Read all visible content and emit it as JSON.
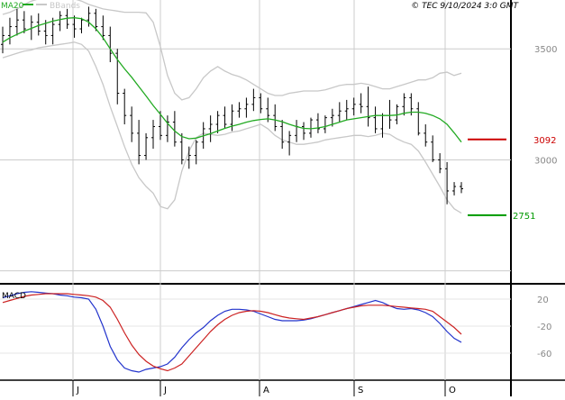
{
  "header": {
    "ma_label": "MA20",
    "bbands_label": "BBands",
    "copyright": "© TEC 9/10/2024 3:0 GMT"
  },
  "colors": {
    "ma": "#22aa22",
    "bbands": "#c8c8c8",
    "bar": "#000000",
    "resistance": "#cc0000",
    "support": "#009900",
    "macd": "#2233cc",
    "signal": "#cc2222",
    "grid": "#cccccc",
    "frame": "#000000"
  },
  "chart_data": [
    {
      "type": "ohlc",
      "panel": "price",
      "x_tick_labels": [
        "J",
        "J",
        "A",
        "S",
        "O"
      ],
      "y_tick_labels": [
        "3500",
        "3000"
      ],
      "ylim": [
        2450,
        3720
      ],
      "grid": true,
      "levels": [
        {
          "name": "resistance",
          "value": 3092,
          "label": "3092"
        },
        {
          "name": "support",
          "value": 2751,
          "label": "2751"
        }
      ],
      "series": [
        {
          "name": "MA20",
          "values": [
            3530,
            3550,
            3565,
            3580,
            3592,
            3605,
            3615,
            3625,
            3632,
            3638,
            3640,
            3636,
            3620,
            3590,
            3550,
            3500,
            3452,
            3410,
            3372,
            3330,
            3288,
            3245,
            3205,
            3165,
            3130,
            3105,
            3095,
            3098,
            3108,
            3118,
            3130,
            3142,
            3152,
            3160,
            3170,
            3177,
            3182,
            3185,
            3180,
            3172,
            3160,
            3150,
            3142,
            3140,
            3144,
            3150,
            3160,
            3170,
            3180,
            3185,
            3190,
            3195,
            3200,
            3200,
            3200,
            3202,
            3210,
            3215,
            3215,
            3210,
            3200,
            3185,
            3160,
            3122,
            3080
          ]
        },
        {
          "name": "BBands upper",
          "values": [
            3655,
            3665,
            3680,
            3700,
            3715,
            3725,
            3730,
            3735,
            3735,
            3730,
            3725,
            3715,
            3700,
            3690,
            3680,
            3675,
            3670,
            3665,
            3665,
            3665,
            3662,
            3620,
            3510,
            3380,
            3300,
            3270,
            3280,
            3320,
            3370,
            3400,
            3420,
            3400,
            3385,
            3375,
            3360,
            3340,
            3320,
            3300,
            3290,
            3290,
            3300,
            3305,
            3310,
            3310,
            3310,
            3315,
            3325,
            3335,
            3340,
            3340,
            3345,
            3340,
            3330,
            3320,
            3320,
            3330,
            3340,
            3350,
            3360,
            3360,
            3370,
            3390,
            3395,
            3380,
            3390
          ]
        },
        {
          "name": "BBands lower",
          "values": [
            3460,
            3470,
            3480,
            3490,
            3495,
            3505,
            3510,
            3515,
            3520,
            3525,
            3530,
            3520,
            3490,
            3420,
            3340,
            3240,
            3150,
            3060,
            2980,
            2920,
            2880,
            2850,
            2790,
            2780,
            2820,
            2950,
            3040,
            3100,
            3120,
            3115,
            3110,
            3115,
            3125,
            3130,
            3140,
            3150,
            3160,
            3140,
            3110,
            3090,
            3080,
            3070,
            3070,
            3075,
            3080,
            3090,
            3095,
            3100,
            3105,
            3110,
            3110,
            3105,
            3110,
            3120,
            3115,
            3095,
            3080,
            3070,
            3040,
            2990,
            2935,
            2880,
            2820,
            2780,
            2760
          ]
        }
      ],
      "ohlc": [
        [
          3520,
          3600,
          3480,
          3560
        ],
        [
          3560,
          3640,
          3520,
          3600
        ],
        [
          3600,
          3680,
          3560,
          3630
        ],
        [
          3630,
          3670,
          3570,
          3590
        ],
        [
          3590,
          3650,
          3540,
          3620
        ],
        [
          3620,
          3660,
          3560,
          3580
        ],
        [
          3580,
          3630,
          3520,
          3560
        ],
        [
          3560,
          3640,
          3520,
          3610
        ],
        [
          3610,
          3670,
          3580,
          3650
        ],
        [
          3650,
          3680,
          3590,
          3610
        ],
        [
          3610,
          3650,
          3550,
          3590
        ],
        [
          3590,
          3640,
          3570,
          3630
        ],
        [
          3630,
          3690,
          3600,
          3660
        ],
        [
          3660,
          3680,
          3580,
          3600
        ],
        [
          3600,
          3650,
          3540,
          3560
        ],
        [
          3560,
          3600,
          3440,
          3480
        ],
        [
          3480,
          3500,
          3250,
          3300
        ],
        [
          3300,
          3320,
          3160,
          3200
        ],
        [
          3200,
          3240,
          3080,
          3120
        ],
        [
          3120,
          3180,
          2980,
          3020
        ],
        [
          3020,
          3120,
          3000,
          3100
        ],
        [
          3100,
          3180,
          3050,
          3150
        ],
        [
          3150,
          3220,
          3090,
          3110
        ],
        [
          3110,
          3200,
          3080,
          3170
        ],
        [
          3170,
          3220,
          3060,
          3080
        ],
        [
          3080,
          3120,
          2980,
          3000
        ],
        [
          3000,
          3060,
          2960,
          3020
        ],
        [
          3020,
          3090,
          2980,
          3080
        ],
        [
          3080,
          3170,
          3050,
          3140
        ],
        [
          3140,
          3200,
          3080,
          3160
        ],
        [
          3160,
          3220,
          3120,
          3200
        ],
        [
          3200,
          3240,
          3140,
          3160
        ],
        [
          3160,
          3250,
          3130,
          3220
        ],
        [
          3220,
          3260,
          3190,
          3230
        ],
        [
          3230,
          3280,
          3190,
          3250
        ],
        [
          3250,
          3320,
          3220,
          3280
        ],
        [
          3280,
          3300,
          3210,
          3230
        ],
        [
          3230,
          3280,
          3170,
          3200
        ],
        [
          3200,
          3250,
          3130,
          3150
        ],
        [
          3150,
          3180,
          3050,
          3080
        ],
        [
          3080,
          3130,
          3020,
          3110
        ],
        [
          3110,
          3180,
          3080,
          3150
        ],
        [
          3150,
          3170,
          3090,
          3120
        ],
        [
          3120,
          3190,
          3100,
          3180
        ],
        [
          3180,
          3210,
          3120,
          3140
        ],
        [
          3140,
          3200,
          3120,
          3190
        ],
        [
          3190,
          3230,
          3150,
          3200
        ],
        [
          3200,
          3260,
          3170,
          3220
        ],
        [
          3220,
          3270,
          3180,
          3230
        ],
        [
          3230,
          3280,
          3200,
          3250
        ],
        [
          3250,
          3300,
          3210,
          3240
        ],
        [
          3240,
          3330,
          3150,
          3190
        ],
        [
          3190,
          3240,
          3120,
          3140
        ],
        [
          3140,
          3210,
          3100,
          3200
        ],
        [
          3200,
          3270,
          3140,
          3180
        ],
        [
          3180,
          3250,
          3160,
          3240
        ],
        [
          3240,
          3300,
          3200,
          3280
        ],
        [
          3280,
          3300,
          3200,
          3230
        ],
        [
          3230,
          3260,
          3110,
          3120
        ],
        [
          3120,
          3160,
          3060,
          3080
        ],
        [
          3080,
          3110,
          2990,
          3000
        ],
        [
          3000,
          3030,
          2940,
          2960
        ],
        [
          2960,
          2990,
          2800,
          2860
        ],
        [
          2860,
          2900,
          2840,
          2880
        ],
        [
          2880,
          2900,
          2850,
          2870
        ]
      ]
    },
    {
      "type": "line",
      "panel": "macd",
      "title": "MACD",
      "y_tick_labels": [
        "20",
        "-20",
        "-60"
      ],
      "ylim": [
        -100,
        40
      ],
      "grid": true,
      "series": [
        {
          "name": "MACD",
          "values": [
            22,
            25,
            28,
            30,
            31,
            30,
            29,
            28,
            26,
            25,
            23,
            22,
            20,
            5,
            -20,
            -50,
            -70,
            -82,
            -86,
            -88,
            -84,
            -82,
            -80,
            -76,
            -66,
            -52,
            -40,
            -30,
            -22,
            -12,
            -4,
            2,
            5,
            5,
            4,
            2,
            -2,
            -6,
            -10,
            -12,
            -12,
            -12,
            -11,
            -9,
            -6,
            -3,
            0,
            3,
            6,
            9,
            12,
            15,
            18,
            15,
            10,
            6,
            5,
            6,
            4,
            0,
            -6,
            -16,
            -28,
            -38,
            -44
          ]
        },
        {
          "name": "Signal",
          "values": [
            15,
            18,
            21,
            24,
            26,
            27,
            28,
            28,
            28,
            28,
            27,
            26,
            25,
            23,
            18,
            8,
            -10,
            -30,
            -48,
            -62,
            -72,
            -79,
            -83,
            -86,
            -82,
            -76,
            -64,
            -52,
            -40,
            -28,
            -18,
            -10,
            -4,
            0,
            2,
            3,
            2,
            0,
            -3,
            -6,
            -8,
            -9,
            -10,
            -8,
            -6,
            -3,
            0,
            3,
            6,
            8,
            10,
            11,
            11,
            11,
            10,
            9,
            8,
            7,
            6,
            5,
            2,
            -6,
            -14,
            -22,
            -32
          ]
        }
      ]
    }
  ]
}
